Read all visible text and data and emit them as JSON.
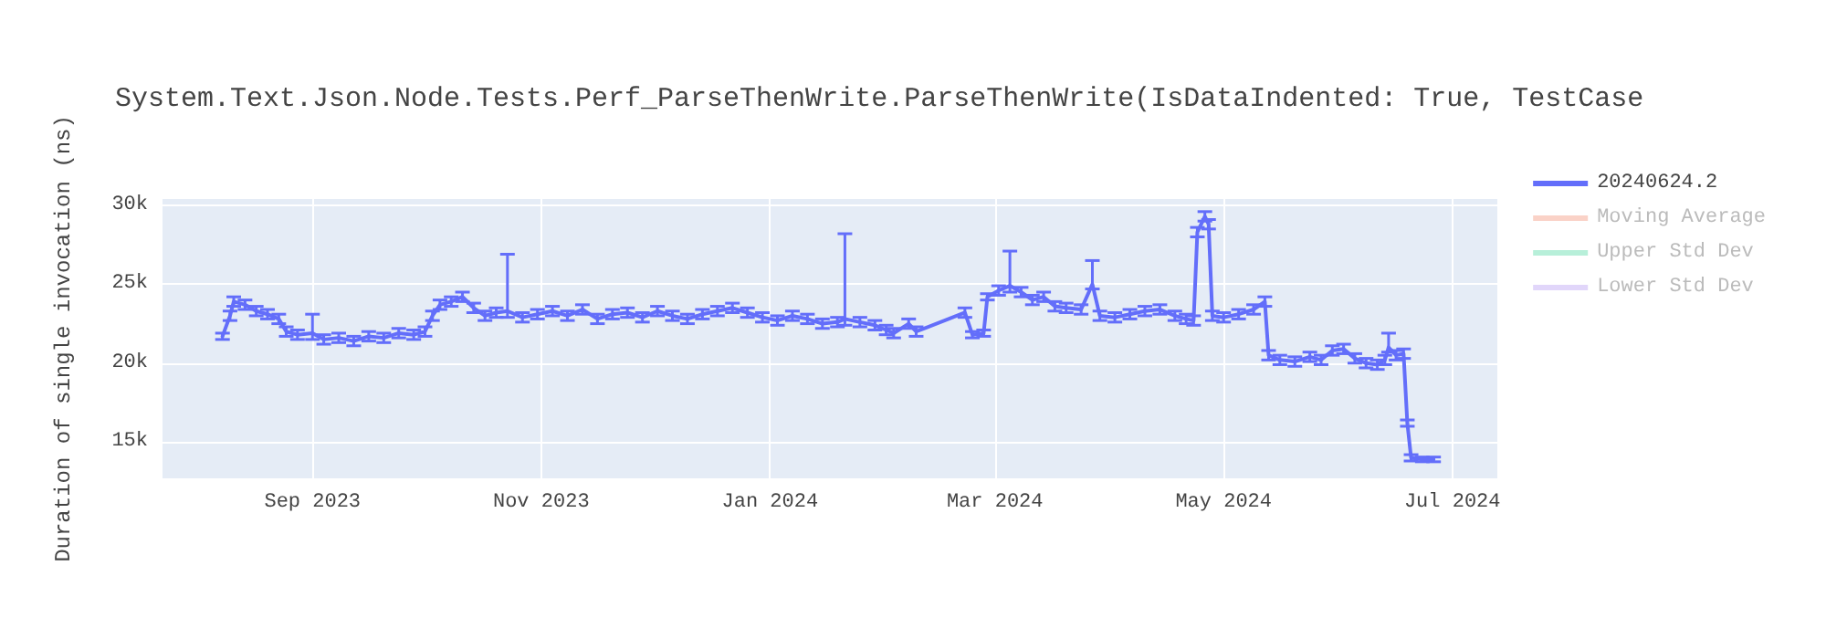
{
  "chart_data": {
    "type": "line",
    "title": "System.Text.Json.Node.Tests.Perf_ParseThenWrite.ParseThenWrite(IsDataIndented: True, TestCase",
    "ylabel": "Duration of single invocation (ns)",
    "xlim": [
      "2023-07-23",
      "2024-07-13"
    ],
    "xticks": [
      {
        "value": "2023-09-01",
        "label": "Sep 2023"
      },
      {
        "value": "2023-11-01",
        "label": "Nov 2023"
      },
      {
        "value": "2024-01-01",
        "label": "Jan 2024"
      },
      {
        "value": "2024-03-01",
        "label": "Mar 2024"
      },
      {
        "value": "2024-05-01",
        "label": "May 2024"
      },
      {
        "value": "2024-07-01",
        "label": "Jul 2024"
      }
    ],
    "ylim": [
      12700,
      30400
    ],
    "yticks": [
      {
        "value": 15000,
        "label": "15k"
      },
      {
        "value": 20000,
        "label": "20k"
      },
      {
        "value": 25000,
        "label": "25k"
      },
      {
        "value": 30000,
        "label": "30k"
      }
    ],
    "grid": true,
    "legend": "top right",
    "marker": "none",
    "line_style": "solid",
    "series": [
      {
        "name": "20240624.2",
        "color": "#636efa",
        "x": [
          "2023-08-08",
          "2023-08-10",
          "2023-08-11",
          "2023-08-14",
          "2023-08-17",
          "2023-08-20",
          "2023-08-23",
          "2023-08-25",
          "2023-08-28",
          "2023-09-01",
          "2023-09-04",
          "2023-09-08",
          "2023-09-12",
          "2023-09-16",
          "2023-09-20",
          "2023-09-24",
          "2023-09-28",
          "2023-10-01",
          "2023-10-03",
          "2023-10-05",
          "2023-10-08",
          "2023-10-11",
          "2023-10-14",
          "2023-10-17",
          "2023-10-20",
          "2023-10-23",
          "2023-10-27",
          "2023-10-31",
          "2023-11-04",
          "2023-11-08",
          "2023-11-12",
          "2023-11-16",
          "2023-11-20",
          "2023-11-24",
          "2023-11-28",
          "2023-12-02",
          "2023-12-06",
          "2023-12-10",
          "2023-12-14",
          "2023-12-18",
          "2023-12-22",
          "2023-12-26",
          "2023-12-30",
          "2024-01-03",
          "2024-01-07",
          "2024-01-11",
          "2024-01-15",
          "2024-01-19",
          "2024-01-21",
          "2024-01-25",
          "2024-01-29",
          "2024-02-01",
          "2024-02-03",
          "2024-02-07",
          "2024-02-09",
          "2024-02-22",
          "2024-02-24",
          "2024-02-27",
          "2024-02-28",
          "2024-03-02",
          "2024-03-05",
          "2024-03-08",
          "2024-03-11",
          "2024-03-14",
          "2024-03-17",
          "2024-03-20",
          "2024-03-24",
          "2024-03-27",
          "2024-03-29",
          "2024-04-02",
          "2024-04-06",
          "2024-04-10",
          "2024-04-14",
          "2024-04-18",
          "2024-04-21",
          "2024-04-23",
          "2024-04-24",
          "2024-04-26",
          "2024-04-27",
          "2024-04-28",
          "2024-05-01",
          "2024-05-05",
          "2024-05-09",
          "2024-05-12",
          "2024-05-13",
          "2024-05-16",
          "2024-05-20",
          "2024-05-24",
          "2024-05-27",
          "2024-05-30",
          "2024-06-02",
          "2024-06-05",
          "2024-06-08",
          "2024-06-11",
          "2024-06-13",
          "2024-06-14",
          "2024-06-16",
          "2024-06-18",
          "2024-06-19",
          "2024-06-20",
          "2024-06-23",
          "2024-06-26"
        ],
        "values": [
          21700,
          23000,
          23900,
          23700,
          23300,
          23100,
          22800,
          22000,
          21800,
          21900,
          21500,
          21600,
          21400,
          21700,
          21600,
          21900,
          21800,
          22000,
          23000,
          23700,
          23900,
          24200,
          23500,
          23000,
          23200,
          23300,
          22900,
          23100,
          23300,
          23000,
          23400,
          22800,
          23100,
          23200,
          22900,
          23300,
          23000,
          22800,
          23100,
          23300,
          23500,
          23200,
          22900,
          22700,
          23000,
          22800,
          22500,
          22600,
          22800,
          22600,
          22400,
          22100,
          21900,
          22500,
          22000,
          23200,
          21800,
          21900,
          24200,
          24600,
          24900,
          24500,
          24000,
          24200,
          23600,
          23500,
          23400,
          25000,
          23000,
          22900,
          23100,
          23300,
          23400,
          23000,
          22800,
          22700,
          28300,
          29300,
          28800,
          23000,
          22900,
          23100,
          23400,
          23900,
          20500,
          20200,
          20100,
          20400,
          20200,
          20800,
          20900,
          20300,
          20000,
          19900,
          20200,
          21000,
          20500,
          20600,
          16200,
          14000,
          13900,
          13900
        ],
        "errors": [
          200,
          300,
          300,
          300,
          300,
          300,
          300,
          300,
          300,
          [
            21500,
            23100
          ],
          300,
          300,
          300,
          300,
          300,
          300,
          300,
          300,
          300,
          300,
          300,
          300,
          300,
          300,
          300,
          [
            22900,
            26900
          ],
          300,
          300,
          300,
          300,
          300,
          300,
          300,
          300,
          300,
          300,
          300,
          300,
          300,
          300,
          300,
          300,
          300,
          300,
          300,
          300,
          300,
          300,
          [
            22400,
            28200
          ],
          300,
          300,
          300,
          300,
          300,
          300,
          300,
          200,
          200,
          200,
          300,
          [
            24500,
            27100
          ],
          300,
          300,
          300,
          300,
          300,
          300,
          [
            24700,
            26500
          ],
          300,
          300,
          300,
          300,
          300,
          300,
          300,
          300,
          300,
          300,
          300,
          300,
          300,
          300,
          300,
          300,
          300,
          300,
          300,
          300,
          300,
          300,
          300,
          300,
          300,
          300,
          300,
          [
            20700,
            21900
          ],
          300,
          300,
          200,
          200,
          150,
          150
        ]
      },
      {
        "name": "Moving Average",
        "color": "#f5a58f"
      },
      {
        "name": "Upper Std Dev",
        "color": "#6fe0b4"
      },
      {
        "name": "Lower Std Dev",
        "color": "#c4aef5"
      }
    ]
  }
}
